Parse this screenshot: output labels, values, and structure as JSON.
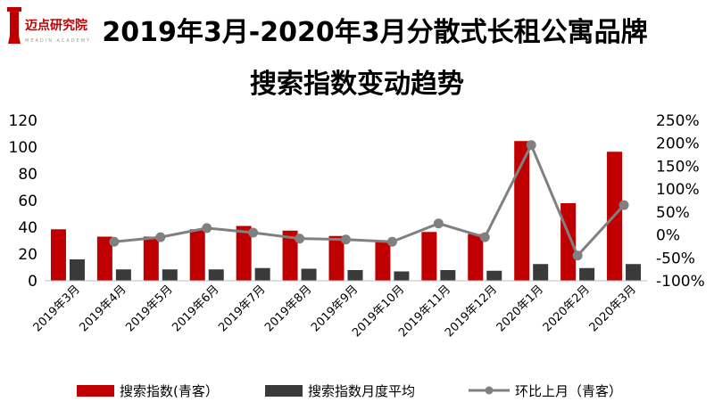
{
  "logo": {
    "name": "迈点研究院",
    "tagline": "MEADIN ACADEMY"
  },
  "colors": {
    "bar_index": "#c00000",
    "bar_avg": "#3a3a3a",
    "line": "#808080",
    "title": "#000000"
  },
  "chart_data": {
    "type": "bar",
    "title": "2019年3月-2020年3月分散式长租公寓品牌",
    "subtitle": "搜索指数变动趋势",
    "categories": [
      "2019年3月",
      "2019年4月",
      "2019年5月",
      "2019年6月",
      "2019年7月",
      "2019年8月",
      "2019年9月",
      "2019年10月",
      "2019年11月",
      "2019年12月",
      "2020年1月",
      "2020年2月",
      "2020年3月"
    ],
    "series": [
      {
        "name": "搜索指数(青客）",
        "axis": "left",
        "type": "bar",
        "values": [
          38.5,
          33,
          33,
          38.5,
          41,
          37.5,
          33.5,
          29.5,
          36.5,
          35,
          104.5,
          58,
          96.5
        ]
      },
      {
        "name": "搜索指数月度平均",
        "axis": "left",
        "type": "bar",
        "values": [
          16,
          8.5,
          8.5,
          8.5,
          9.5,
          9,
          8,
          7,
          8,
          7.5,
          12.5,
          9.5,
          12.5
        ]
      },
      {
        "name": "环比上月（青客）",
        "axis": "right",
        "type": "line",
        "values": [
          null,
          -15,
          -5,
          15,
          5,
          -8,
          -10,
          -15,
          25,
          -5,
          196,
          -45,
          65
        ]
      }
    ],
    "left_axis": {
      "ylim": [
        0,
        120
      ],
      "ticks": [
        "0",
        "20",
        "40",
        "60",
        "80",
        "100",
        "120"
      ]
    },
    "right_axis": {
      "ylim": [
        -100,
        250
      ],
      "ticks": [
        "-100%",
        "-50%",
        "0%",
        "50%",
        "100%",
        "150%",
        "200%",
        "250%"
      ]
    },
    "legend_position": "bottom",
    "grid": false
  }
}
